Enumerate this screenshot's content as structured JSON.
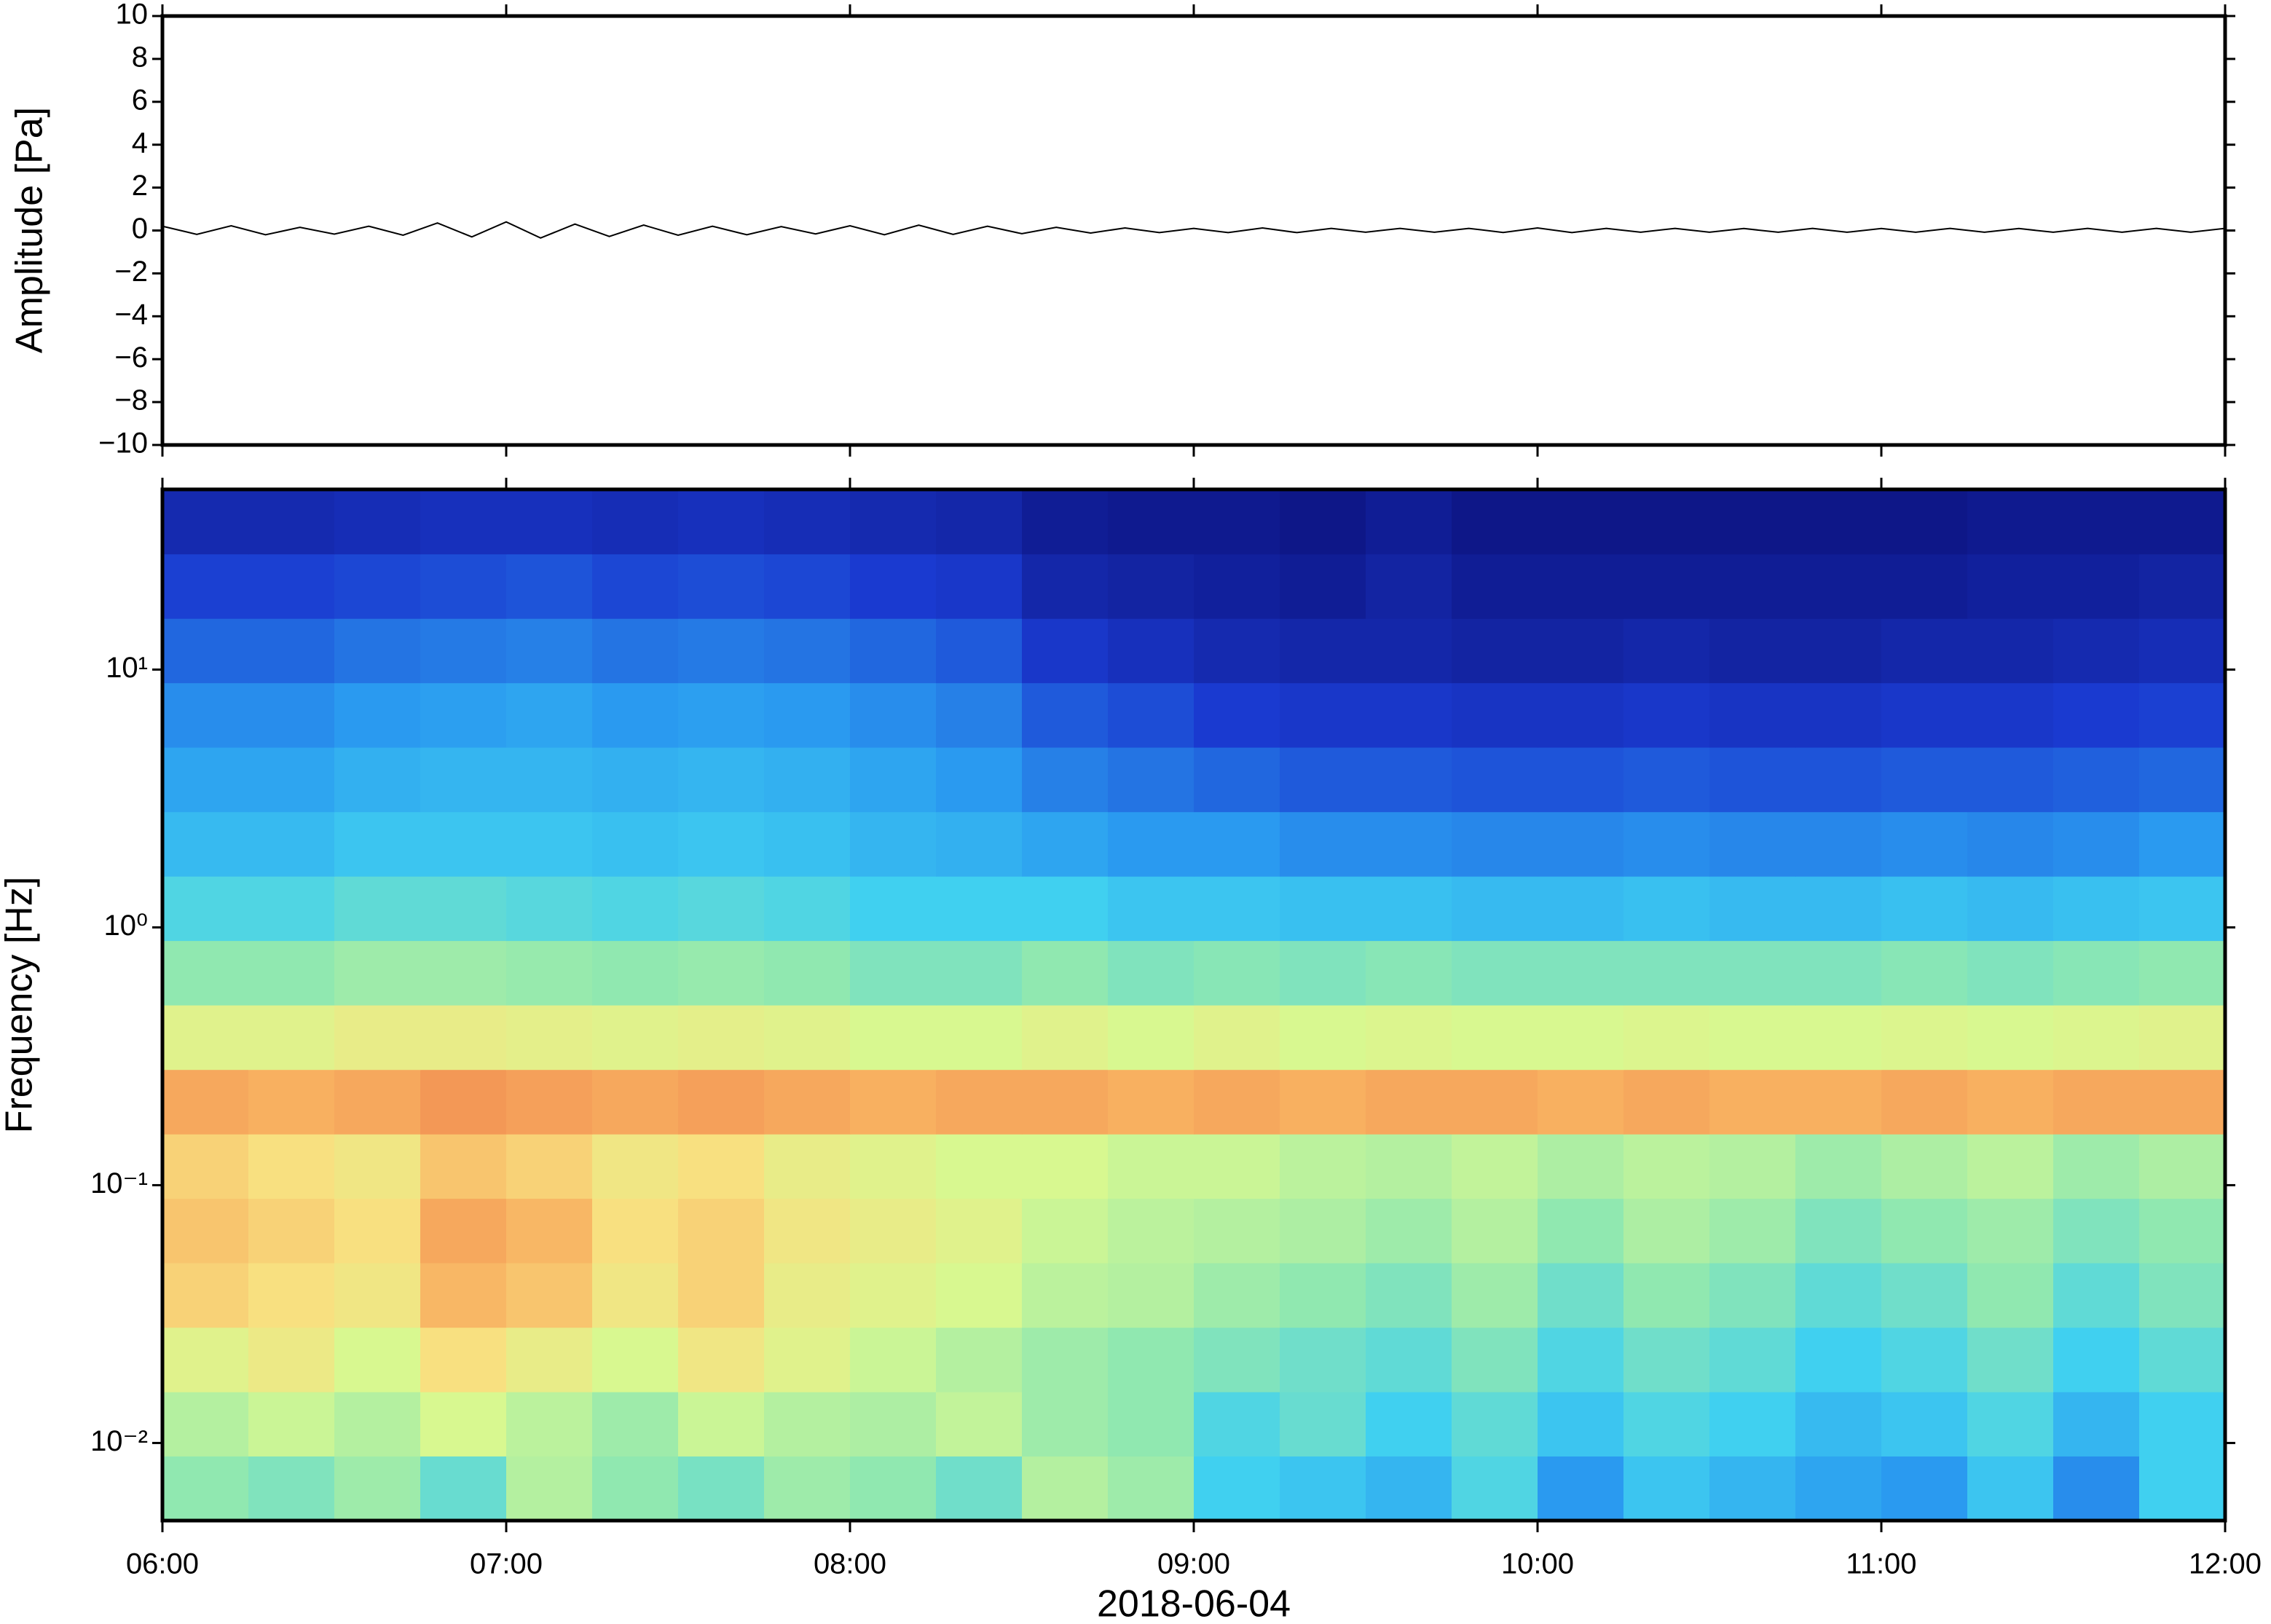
{
  "chart_data": [
    {
      "type": "line",
      "ylabel": "Amplitude [Pa]",
      "xlim": [
        6,
        12
      ],
      "xticks": [
        6,
        7,
        8,
        9,
        10,
        11,
        12
      ],
      "ylim": [
        -10,
        10
      ],
      "yticks": [
        {
          "value": -10,
          "label": "−10"
        },
        {
          "value": -8,
          "label": "−8"
        },
        {
          "value": -6,
          "label": "−6"
        },
        {
          "value": -4,
          "label": "−4"
        },
        {
          "value": -2,
          "label": "−2"
        },
        0,
        2,
        4,
        6,
        8,
        10
      ],
      "color": "#000000",
      "x": [
        6,
        6.1,
        6.2,
        6.3,
        6.4,
        6.5,
        6.6,
        6.7,
        6.8,
        6.9,
        7,
        7.1,
        7.2,
        7.3,
        7.4,
        7.5,
        7.6,
        7.7,
        7.8,
        7.9,
        8,
        8.1,
        8.2,
        8.3,
        8.4,
        8.5,
        8.6,
        8.7,
        8.8,
        8.9,
        9,
        9.1,
        9.2,
        9.3,
        9.4,
        9.5,
        9.6,
        9.7,
        9.8,
        9.9,
        10,
        10.1,
        10.2,
        10.3,
        10.4,
        10.5,
        10.6,
        10.7,
        10.8,
        10.9,
        11,
        11.1,
        11.2,
        11.3,
        11.4,
        11.5,
        11.6,
        11.7,
        11.8,
        11.9,
        12
      ],
      "values": [
        0.2,
        -0.18,
        0.22,
        -0.2,
        0.15,
        -0.17,
        0.2,
        -0.22,
        0.35,
        -0.3,
        0.4,
        -0.35,
        0.3,
        -0.28,
        0.25,
        -0.22,
        0.2,
        -0.2,
        0.18,
        -0.16,
        0.22,
        -0.2,
        0.25,
        -0.18,
        0.2,
        -0.15,
        0.15,
        -0.12,
        0.12,
        -0.1,
        0.1,
        -0.1,
        0.12,
        -0.1,
        0.1,
        -0.08,
        0.1,
        -0.08,
        0.1,
        -0.09,
        0.12,
        -0.1,
        0.1,
        -0.08,
        0.1,
        -0.08,
        0.09,
        -0.08,
        0.1,
        -0.08,
        0.09,
        -0.08,
        0.1,
        -0.08,
        0.09,
        -0.08,
        0.1,
        -0.08,
        0.1,
        -0.08,
        0.1
      ]
    },
    {
      "type": "heatmap",
      "ylabel": "Frequency [Hz]",
      "xlabel": "2018-06-04",
      "xlim": [
        6,
        12
      ],
      "xticks": [
        {
          "value": 6,
          "label": "06:00"
        },
        {
          "value": 7,
          "label": "07:00"
        },
        {
          "value": 8,
          "label": "08:00"
        },
        {
          "value": 9,
          "label": "09:00"
        },
        {
          "value": 10,
          "label": "10:00"
        },
        {
          "value": 11,
          "label": "11:00"
        },
        {
          "value": 12,
          "label": "12:00"
        }
      ],
      "ylim": [
        0.005,
        50
      ],
      "log_y": true,
      "yticks": [
        {
          "value": 0.01,
          "label": "10⁻²"
        },
        {
          "value": 0.1,
          "label": "10⁻¹"
        },
        {
          "value": 1,
          "label": "10⁰"
        },
        {
          "value": 10,
          "label": "10¹"
        }
      ],
      "colorscale": [
        [
          0,
          "#0a0a6e"
        ],
        [
          15,
          "#1a3ad0"
        ],
        [
          30,
          "#2a9af0"
        ],
        [
          40,
          "#40d0f0"
        ],
        [
          50,
          "#90e8b0"
        ],
        [
          60,
          "#d8f890"
        ],
        [
          68,
          "#f8e080"
        ],
        [
          75,
          "#f8b060"
        ],
        [
          85,
          "#e86040"
        ]
      ],
      "x_edges": [
        6,
        6.25,
        6.5,
        6.75,
        7,
        7.25,
        7.5,
        7.75,
        8,
        8.25,
        8.5,
        8.75,
        9,
        9.25,
        9.5,
        9.75,
        10,
        10.25,
        10.5,
        10.75,
        11,
        11.25,
        11.5,
        11.75,
        12
      ],
      "y_edges": [
        0.005,
        0.0089,
        0.0158,
        0.0281,
        0.05,
        0.0889,
        0.158,
        0.281,
        0.5,
        0.889,
        1.58,
        2.81,
        5,
        8.89,
        15.8,
        28.1,
        50
      ],
      "values": [
        [
          50,
          48,
          52,
          45,
          55,
          50,
          47,
          52,
          50,
          46,
          55,
          52,
          40,
          38,
          35,
          42,
          30,
          38,
          35,
          32,
          30,
          38,
          28,
          40
        ],
        [
          55,
          58,
          55,
          60,
          56,
          52,
          58,
          55,
          54,
          57,
          52,
          50,
          42,
          45,
          40,
          44,
          38,
          42,
          40,
          36,
          38,
          42,
          35,
          40
        ],
        [
          62,
          65,
          60,
          68,
          64,
          60,
          66,
          62,
          58,
          55,
          52,
          50,
          48,
          46,
          44,
          48,
          42,
          46,
          44,
          40,
          42,
          46,
          40,
          44
        ],
        [
          70,
          68,
          66,
          74,
          72,
          66,
          70,
          64,
          62,
          60,
          56,
          55,
          52,
          50,
          48,
          52,
          46,
          50,
          48,
          44,
          46,
          50,
          44,
          48
        ],
        [
          72,
          70,
          68,
          76,
          74,
          68,
          70,
          66,
          64,
          62,
          58,
          56,
          55,
          54,
          52,
          55,
          50,
          54,
          52,
          48,
          50,
          52,
          48,
          50
        ],
        [
          70,
          68,
          66,
          72,
          70,
          66,
          68,
          64,
          62,
          60,
          60,
          58,
          58,
          56,
          55,
          57,
          54,
          56,
          55,
          52,
          54,
          56,
          52,
          54
        ],
        [
          76,
          75,
          76,
          78,
          77,
          76,
          77,
          76,
          75,
          76,
          76,
          75,
          76,
          75,
          76,
          76,
          75,
          76,
          75,
          75,
          76,
          75,
          76,
          76
        ],
        [
          62,
          62,
          64,
          64,
          63,
          62,
          63,
          62,
          60,
          60,
          62,
          60,
          62,
          60,
          61,
          60,
          60,
          61,
          60,
          60,
          61,
          60,
          61,
          62
        ],
        [
          50,
          50,
          52,
          52,
          51,
          50,
          51,
          50,
          48,
          48,
          50,
          48,
          49,
          48,
          49,
          48,
          48,
          48,
          48,
          48,
          49,
          48,
          49,
          50
        ],
        [
          42,
          42,
          44,
          44,
          43,
          42,
          43,
          42,
          40,
          40,
          40,
          38,
          38,
          37,
          37,
          36,
          36,
          37,
          36,
          36,
          37,
          36,
          37,
          38
        ],
        [
          36,
          36,
          38,
          38,
          38,
          37,
          38,
          37,
          35,
          34,
          32,
          30,
          30,
          28,
          28,
          27,
          27,
          28,
          27,
          27,
          28,
          27,
          28,
          30
        ],
        [
          32,
          32,
          34,
          35,
          35,
          34,
          35,
          34,
          32,
          30,
          26,
          24,
          22,
          20,
          20,
          19,
          19,
          20,
          19,
          19,
          20,
          20,
          21,
          22
        ],
        [
          28,
          28,
          30,
          31,
          32,
          30,
          31,
          30,
          28,
          26,
          20,
          18,
          15,
          14,
          14,
          13,
          13,
          14,
          13,
          13,
          14,
          14,
          15,
          16
        ],
        [
          22,
          22,
          24,
          25,
          26,
          24,
          25,
          24,
          22,
          20,
          14,
          12,
          10,
          9,
          9,
          8,
          8,
          9,
          8,
          8,
          9,
          9,
          10,
          11
        ],
        [
          16,
          16,
          17,
          18,
          19,
          17,
          18,
          17,
          15,
          14,
          9,
          8,
          7,
          6,
          8,
          6,
          6,
          6,
          6,
          6,
          6,
          7,
          7,
          8
        ],
        [
          10,
          10,
          11,
          12,
          12,
          11,
          12,
          11,
          10,
          9,
          6,
          5,
          5,
          4,
          6,
          4,
          4,
          4,
          4,
          4,
          4,
          5,
          5,
          5
        ]
      ]
    }
  ]
}
